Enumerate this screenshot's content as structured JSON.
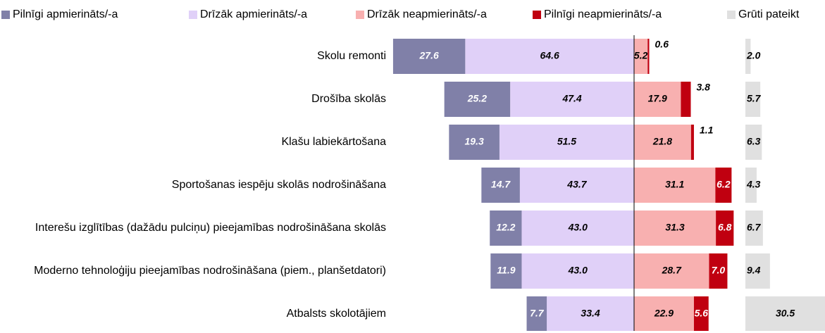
{
  "chart_data": {
    "type": "diverging_bar",
    "categories": [
      "Skolu remonti",
      "Drošība skolās",
      "Klašu labiekārtošana",
      "Sportošanas iespēju skolās nodrošināšana",
      "Interešu izglītības (dažādu pulciņu) pieejamības nodrošināšana skolās",
      "Moderno tehnoloģiju pieejamības nodrošināšana (piem., planšetdatori)",
      "Atbalsts skolotājiem"
    ],
    "series": [
      {
        "name": "Pilnīgi apmierināts/-a",
        "color": "#8080a8",
        "side": "left",
        "values": [
          27.6,
          25.2,
          19.3,
          14.7,
          12.2,
          11.9,
          7.7
        ],
        "value_labels": [
          "27.6",
          "25.2",
          "19.3",
          "14.7",
          "12.2",
          "11.9",
          "7.7"
        ]
      },
      {
        "name": "Drīzāk apmierināts/-a",
        "color": "#e0d0f8",
        "side": "left",
        "values": [
          64.6,
          47.4,
          51.5,
          43.7,
          43.0,
          43.0,
          33.4
        ],
        "value_labels": [
          "64.6",
          "47.4",
          "51.5",
          "43.7",
          "43.0",
          "43.0",
          "33.4"
        ]
      },
      {
        "name": "Drīzāk neapmierināts/-a",
        "color": "#f8b0b0",
        "side": "right",
        "values": [
          5.2,
          17.9,
          21.8,
          31.1,
          31.3,
          28.7,
          22.9
        ],
        "value_labels": [
          "5.2",
          "17.9",
          "21.8",
          "31.1",
          "31.3",
          "28.7",
          "22.9"
        ]
      },
      {
        "name": "Pilnīgi neapmierināts/-a",
        "color": "#c00010",
        "side": "right",
        "values": [
          0.6,
          3.8,
          1.1,
          6.2,
          6.8,
          7.0,
          5.6
        ],
        "value_labels": [
          "0.6",
          "3.8",
          "1.1",
          "6.2",
          "6.8",
          "7.0",
          "5.6"
        ]
      },
      {
        "name": "Grūti pateikt",
        "color": "#e0e0e0",
        "side": "separate",
        "values": [
          2.0,
          5.7,
          6.3,
          4.3,
          6.7,
          9.4,
          30.5
        ],
        "value_labels": [
          "2.0",
          "5.7",
          "6.3",
          "4.3",
          "6.7",
          "9.4",
          "30.5"
        ]
      }
    ]
  }
}
